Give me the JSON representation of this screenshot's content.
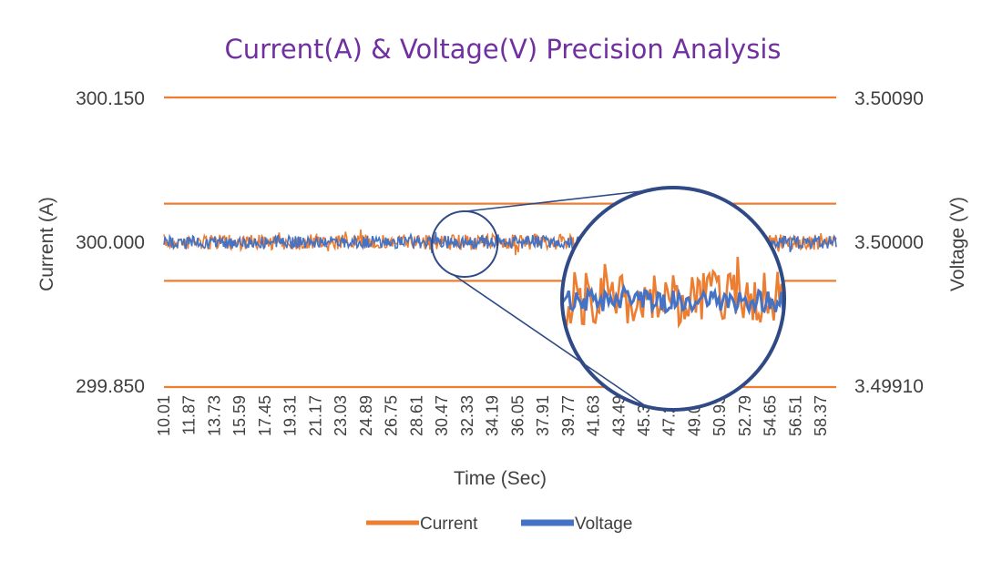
{
  "chart_data": {
    "type": "line",
    "title": "Current(A) & Voltage(V) Precision Analysis",
    "xlabel": "Time (Sec)",
    "ylabel_left": "Current (A)",
    "ylabel_right": "Voltage (V)",
    "x_ticks": [
      "10.01",
      "11.87",
      "13.73",
      "15.59",
      "17.45",
      "19.31",
      "21.17",
      "23.03",
      "24.89",
      "26.75",
      "28.61",
      "30.47",
      "32.33",
      "34.19",
      "36.05",
      "37.91",
      "39.77",
      "41.63",
      "43.49",
      "45.35",
      "47.21",
      "49.07",
      "50.93",
      "52.79",
      "54.65",
      "56.51",
      "58.37"
    ],
    "y_left_ticks": [
      "300.150",
      "300.000",
      "299.850"
    ],
    "y_right_ticks": [
      "3.50090",
      "3.50000",
      "3.49910"
    ],
    "y_left_range": [
      299.85,
      300.15
    ],
    "y_right_range": [
      3.4991,
      3.5009
    ],
    "x_range": [
      10.01,
      59.5
    ],
    "limit_lines_left": [
      300.15,
      300.04,
      299.96,
      299.85
    ],
    "series": [
      {
        "name": "Current",
        "axis": "left",
        "color": "#ED7D31",
        "center": 300.0,
        "noise_amplitude": 0.008
      },
      {
        "name": "Voltage",
        "axis": "right",
        "color": "#4472C4",
        "center": 3.5,
        "noise_amplitude": 4e-05
      }
    ],
    "legend_position": "bottom",
    "gridlines": false
  },
  "colors": {
    "title": "#7030A0",
    "current": "#ED7D31",
    "voltage": "#4472C4",
    "zoom": "#2F4A85",
    "text": "#404040"
  },
  "zoom_inset": {
    "x_range": [
      30.5,
      33.8
    ]
  }
}
